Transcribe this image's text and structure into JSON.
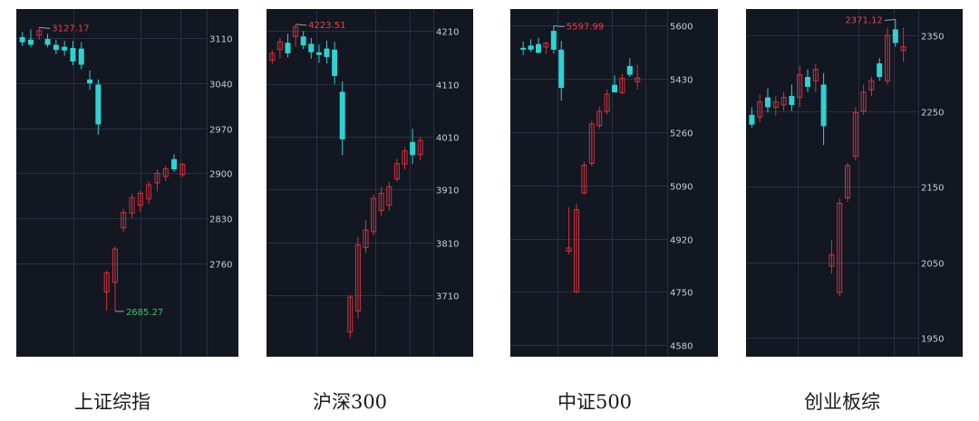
{
  "colors": {
    "background": "#131722",
    "grid": "#283040",
    "axis_text": "#c9cdd6",
    "up": "#d3313b",
    "down": "#2fd2d2",
    "high_label": "#e8414a",
    "low_label": "#33c36b"
  },
  "chart_data": [
    {
      "type": "candlestick",
      "title": "上证综指",
      "ylim": [
        2620,
        3150
      ],
      "yticks": [
        3110,
        3040,
        2970,
        2900,
        2830,
        2760
      ],
      "high_label": "3127.17",
      "low_label": "2685.27",
      "candles": [
        {
          "o": 3112,
          "h": 3120,
          "l": 3098,
          "c": 3104
        },
        {
          "o": 3108,
          "h": 3124,
          "l": 3096,
          "c": 3100
        },
        {
          "o": 3115,
          "h": 3127,
          "l": 3108,
          "c": 3122
        },
        {
          "o": 3109,
          "h": 3117,
          "l": 3096,
          "c": 3100
        },
        {
          "o": 3100,
          "h": 3108,
          "l": 3085,
          "c": 3092
        },
        {
          "o": 3097,
          "h": 3106,
          "l": 3083,
          "c": 3091
        },
        {
          "o": 3095,
          "h": 3106,
          "l": 3068,
          "c": 3074
        },
        {
          "o": 3094,
          "h": 3104,
          "l": 3062,
          "c": 3069
        },
        {
          "o": 3046,
          "h": 3060,
          "l": 3030,
          "c": 3040
        },
        {
          "o": 3038,
          "h": 3046,
          "l": 2960,
          "c": 2976
        },
        {
          "o": 2715,
          "h": 2748,
          "l": 2686,
          "c": 2745
        },
        {
          "o": 2730,
          "h": 2786,
          "l": 2685,
          "c": 2782
        },
        {
          "o": 2815,
          "h": 2845,
          "l": 2808,
          "c": 2839
        },
        {
          "o": 2838,
          "h": 2868,
          "l": 2830,
          "c": 2862
        },
        {
          "o": 2850,
          "h": 2873,
          "l": 2840,
          "c": 2869
        },
        {
          "o": 2860,
          "h": 2887,
          "l": 2853,
          "c": 2882
        },
        {
          "o": 2885,
          "h": 2906,
          "l": 2872,
          "c": 2900
        },
        {
          "o": 2895,
          "h": 2912,
          "l": 2888,
          "c": 2907
        },
        {
          "o": 2922,
          "h": 2929,
          "l": 2902,
          "c": 2906
        },
        {
          "o": 2898,
          "h": 2916,
          "l": 2894,
          "c": 2914
        }
      ]
    },
    {
      "type": "candlestick",
      "title": "沪深300",
      "ylim": [
        3600,
        4245
      ],
      "yticks": [
        4210,
        4110,
        4010,
        3910,
        3810,
        3710
      ],
      "high_label": "4223.51",
      "candles": [
        {
          "o": 4155,
          "h": 4174,
          "l": 4148,
          "c": 4168
        },
        {
          "o": 4175,
          "h": 4198,
          "l": 4158,
          "c": 4190
        },
        {
          "o": 4188,
          "h": 4205,
          "l": 4160,
          "c": 4168
        },
        {
          "o": 4200,
          "h": 4223,
          "l": 4181,
          "c": 4218
        },
        {
          "o": 4200,
          "h": 4210,
          "l": 4176,
          "c": 4183
        },
        {
          "o": 4186,
          "h": 4197,
          "l": 4158,
          "c": 4170
        },
        {
          "o": 4170,
          "h": 4185,
          "l": 4150,
          "c": 4165
        },
        {
          "o": 4177,
          "h": 4192,
          "l": 4149,
          "c": 4161
        },
        {
          "o": 4175,
          "h": 4190,
          "l": 4110,
          "c": 4125
        },
        {
          "o": 4095,
          "h": 4115,
          "l": 3975,
          "c": 4005
        },
        {
          "o": 3640,
          "h": 3710,
          "l": 3628,
          "c": 3706
        },
        {
          "o": 3680,
          "h": 3820,
          "l": 3665,
          "c": 3805
        },
        {
          "o": 3800,
          "h": 3852,
          "l": 3790,
          "c": 3833
        },
        {
          "o": 3830,
          "h": 3900,
          "l": 3823,
          "c": 3893
        },
        {
          "o": 3870,
          "h": 3915,
          "l": 3860,
          "c": 3903
        },
        {
          "o": 3880,
          "h": 3925,
          "l": 3870,
          "c": 3915
        },
        {
          "o": 3930,
          "h": 3968,
          "l": 3925,
          "c": 3959
        },
        {
          "o": 3958,
          "h": 3990,
          "l": 3948,
          "c": 3983
        },
        {
          "o": 4000,
          "h": 4025,
          "l": 3958,
          "c": 3975
        },
        {
          "o": 3976,
          "h": 4010,
          "l": 3966,
          "c": 4003
        }
      ]
    },
    {
      "type": "candlestick",
      "title": "中证500",
      "ylim": [
        4555,
        5640
      ],
      "yticks": [
        5600,
        5430,
        5260,
        5090,
        4920,
        4750,
        4580
      ],
      "high_label": "5597.99",
      "candles": [
        {
          "o": 5528,
          "h": 5548,
          "l": 5505,
          "c": 5522
        },
        {
          "o": 5535,
          "h": 5555,
          "l": 5515,
          "c": 5522
        },
        {
          "o": 5540,
          "h": 5560,
          "l": 5510,
          "c": 5512
        },
        {
          "o": 5530,
          "h": 5548,
          "l": 5508,
          "c": 5543
        },
        {
          "o": 5582,
          "h": 5598,
          "l": 5510,
          "c": 5522
        },
        {
          "o": 5522,
          "h": 5550,
          "l": 5360,
          "c": 5400
        },
        {
          "o": 4880,
          "h": 5020,
          "l": 4870,
          "c": 4890
        },
        {
          "o": 4750,
          "h": 5030,
          "l": 4745,
          "c": 5012
        },
        {
          "o": 5065,
          "h": 5165,
          "l": 5060,
          "c": 5154
        },
        {
          "o": 5160,
          "h": 5295,
          "l": 5150,
          "c": 5285
        },
        {
          "o": 5280,
          "h": 5340,
          "l": 5270,
          "c": 5325
        },
        {
          "o": 5325,
          "h": 5395,
          "l": 5315,
          "c": 5380
        },
        {
          "o": 5410,
          "h": 5440,
          "l": 5390,
          "c": 5386
        },
        {
          "o": 5385,
          "h": 5445,
          "l": 5380,
          "c": 5431
        },
        {
          "o": 5470,
          "h": 5495,
          "l": 5435,
          "c": 5442
        },
        {
          "o": 5420,
          "h": 5475,
          "l": 5395,
          "c": 5432
        }
      ]
    },
    {
      "type": "candlestick",
      "title": "创业板综",
      "ylim": [
        1930,
        2380
      ],
      "yticks": [
        2350,
        2250,
        2150,
        2050,
        1950
      ],
      "high_label": "2371.12",
      "candles": [
        {
          "o": 2245,
          "h": 2255,
          "l": 2228,
          "c": 2232
        },
        {
          "o": 2242,
          "h": 2272,
          "l": 2235,
          "c": 2262
        },
        {
          "o": 2268,
          "h": 2280,
          "l": 2248,
          "c": 2255
        },
        {
          "o": 2255,
          "h": 2270,
          "l": 2244,
          "c": 2262
        },
        {
          "o": 2258,
          "h": 2275,
          "l": 2250,
          "c": 2268
        },
        {
          "o": 2270,
          "h": 2285,
          "l": 2250,
          "c": 2258
        },
        {
          "o": 2268,
          "h": 2310,
          "l": 2255,
          "c": 2298
        },
        {
          "o": 2295,
          "h": 2305,
          "l": 2275,
          "c": 2282
        },
        {
          "o": 2290,
          "h": 2312,
          "l": 2275,
          "c": 2305
        },
        {
          "o": 2285,
          "h": 2300,
          "l": 2205,
          "c": 2230
        },
        {
          "o": 2045,
          "h": 2080,
          "l": 2035,
          "c": 2060
        },
        {
          "o": 2010,
          "h": 2135,
          "l": 2005,
          "c": 2128
        },
        {
          "o": 2135,
          "h": 2182,
          "l": 2130,
          "c": 2178
        },
        {
          "o": 2190,
          "h": 2255,
          "l": 2185,
          "c": 2248
        },
        {
          "o": 2250,
          "h": 2285,
          "l": 2245,
          "c": 2275
        },
        {
          "o": 2278,
          "h": 2295,
          "l": 2270,
          "c": 2290
        },
        {
          "o": 2313,
          "h": 2320,
          "l": 2290,
          "c": 2295
        },
        {
          "o": 2290,
          "h": 2360,
          "l": 2285,
          "c": 2350
        },
        {
          "o": 2358,
          "h": 2371,
          "l": 2335,
          "c": 2340
        },
        {
          "o": 2330,
          "h": 2360,
          "l": 2315,
          "c": 2335
        }
      ]
    }
  ]
}
